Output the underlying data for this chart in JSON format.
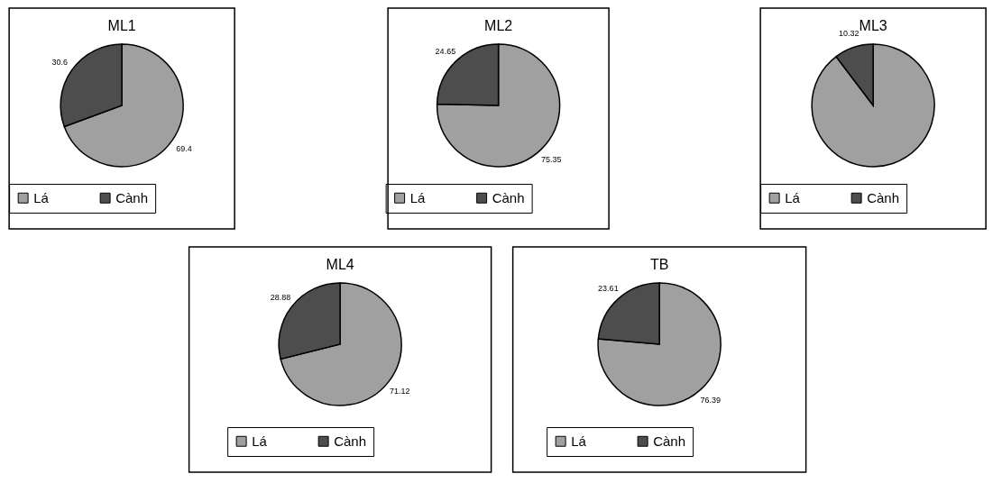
{
  "chart_data": [
    {
      "type": "pie",
      "title": "ML1",
      "categories": [
        "Lá",
        "Cành"
      ],
      "values": [
        69.4,
        30.6
      ],
      "colors": [
        "#a0a0a0",
        "#4d4d4d"
      ],
      "data_labels": true,
      "legend": "bottom"
    },
    {
      "type": "pie",
      "title": "ML2",
      "categories": [
        "Lá",
        "Cành"
      ],
      "values": [
        75.35,
        24.65
      ],
      "colors": [
        "#a0a0a0",
        "#4d4d4d"
      ],
      "data_labels": true,
      "legend": "bottom"
    },
    {
      "type": "pie",
      "title": "ML3",
      "categories": [
        "Lá",
        "Cành"
      ],
      "values": [
        89.68,
        10.32
      ],
      "colors": [
        "#a0a0a0",
        "#4d4d4d"
      ],
      "value_labels": [
        null,
        "10.32"
      ],
      "legend": "bottom"
    },
    {
      "type": "pie",
      "title": "ML4",
      "categories": [
        "Lá",
        "Cành"
      ],
      "values": [
        71.12,
        28.88
      ],
      "colors": [
        "#a0a0a0",
        "#4d4d4d"
      ],
      "data_labels": true,
      "legend": "bottom"
    },
    {
      "type": "pie",
      "title": "TB",
      "categories": [
        "Lá",
        "Cành"
      ],
      "values": [
        76.39,
        23.61
      ],
      "colors": [
        "#a0a0a0",
        "#4d4d4d"
      ],
      "data_labels": true,
      "legend": "bottom"
    }
  ]
}
